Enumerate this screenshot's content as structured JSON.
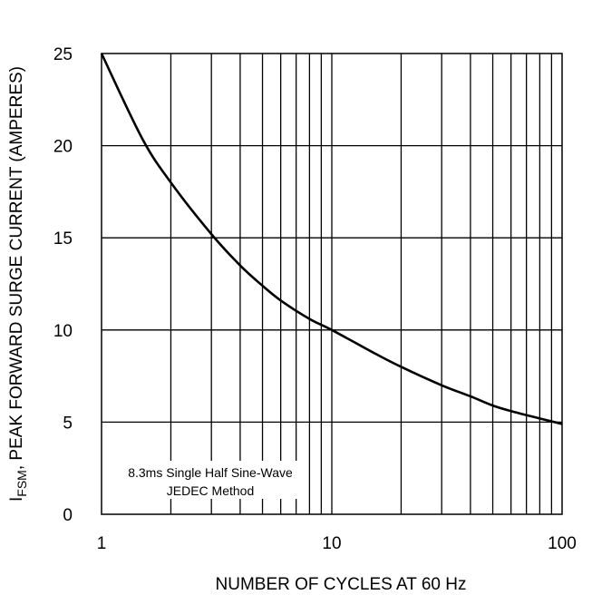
{
  "chart_data": {
    "type": "line",
    "xscale": "log",
    "xlim": [
      1,
      100
    ],
    "ylim": [
      0,
      25
    ],
    "xticks": [
      1,
      10,
      100
    ],
    "xtick_labels": [
      "1",
      "10",
      "100"
    ],
    "yticks": [
      0,
      5,
      10,
      15,
      20,
      25
    ],
    "ytick_labels": [
      "0",
      "5",
      "10",
      "15",
      "20",
      "25"
    ],
    "grid": true,
    "xlabel": "NUMBER OF CYCLES AT 60 Hz",
    "ylabel_sub": "FSM",
    "ylabel_rest": ", PEAK FORWARD SURGE CURRENT (AMPERES)",
    "ylabel_prefix": "I",
    "annotation": [
      "8.3ms Single Half Sine-Wave",
      "JEDEC Method"
    ],
    "series": [
      {
        "x": [
          1,
          1.5,
          2,
          3,
          4,
          5,
          6,
          8,
          10,
          15,
          20,
          30,
          40,
          50,
          60,
          80,
          100
        ],
        "y": [
          25,
          20.4,
          18,
          15.2,
          13.5,
          12.4,
          11.6,
          10.6,
          10,
          8.8,
          8,
          7,
          6.4,
          5.9,
          5.6,
          5.2,
          4.9
        ]
      }
    ],
    "colors": {
      "line": "#000000",
      "grid": "#000000"
    }
  }
}
